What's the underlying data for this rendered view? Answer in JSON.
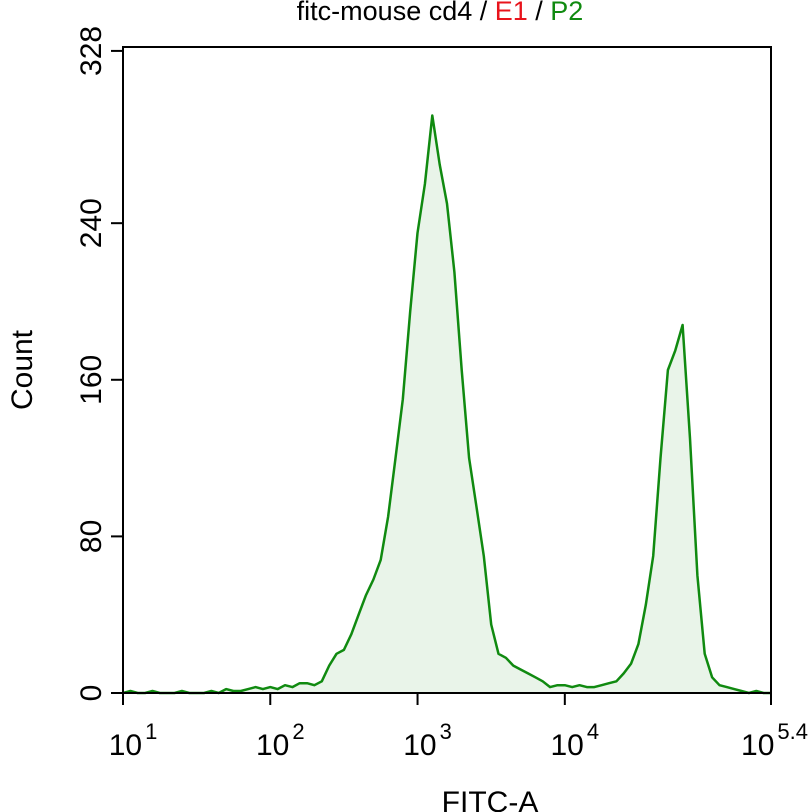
{
  "chart_data": {
    "type": "line",
    "title_parts": [
      {
        "text": "fitc-mouse cd4 / ",
        "color": "#000000"
      },
      {
        "text": "E1",
        "color": "#e8141c"
      },
      {
        "text": " / ",
        "color": "#000000"
      },
      {
        "text": "P2",
        "color": "#108a10"
      }
    ],
    "x_label": "FITC-A",
    "y_label": "Count",
    "x_log": true,
    "xlim": [
      10,
      251189
    ],
    "xticks": [
      {
        "value": 10,
        "label": "10",
        "exponent": "1"
      },
      {
        "value": 100,
        "label": "10",
        "exponent": "2"
      },
      {
        "value": 1000,
        "label": "10",
        "exponent": "3"
      },
      {
        "value": 10000,
        "label": "10",
        "exponent": "4"
      },
      {
        "value": 251189,
        "label": "10",
        "exponent": "5.4"
      }
    ],
    "ylim": [
      0,
      330
    ],
    "yticks": [
      0,
      80,
      160,
      240,
      328
    ],
    "fill_color": "#e9f4e9",
    "x": [
      10,
      11.22,
      12.59,
      14.13,
      15.85,
      17.78,
      19.95,
      22.39,
      25.12,
      28.18,
      31.62,
      35.48,
      39.81,
      44.67,
      50.12,
      56.23,
      63.1,
      70.79,
      79.43,
      89.13,
      100,
      112.2,
      125.9,
      141.3,
      158.5,
      177.8,
      199.5,
      223.9,
      251.2,
      281.8,
      316.2,
      354.8,
      398.1,
      446.7,
      501.2,
      562.3,
      631,
      707.9,
      794.3,
      891.3,
      1000,
      1122,
      1259,
      1413,
      1585,
      1778,
      1995,
      2239,
      2512,
      2818,
      3162,
      3548,
      3981,
      4467,
      5012,
      5623,
      6310,
      7079,
      7943,
      8913,
      10000,
      11220,
      12590,
      14130,
      15850,
      17780,
      19950,
      22390,
      25120,
      28180,
      31620,
      35480,
      39810,
      44670,
      50120,
      56230,
      63100,
      70790,
      79430,
      89130,
      100000,
      112200,
      125900,
      141300,
      158500,
      177800,
      199500,
      223900,
      251189
    ],
    "series": [
      {
        "name": "P2",
        "color": "#108a10",
        "values": [
          0,
          1,
          0,
          0,
          1,
          0,
          0,
          0,
          1,
          0,
          0,
          0,
          1,
          0,
          2,
          1,
          1,
          2,
          3,
          2,
          3,
          2,
          4,
          3,
          5,
          5,
          4,
          6,
          14,
          20,
          22,
          30,
          40,
          50,
          58,
          68,
          90,
          120,
          150,
          195,
          235,
          260,
          295,
          270,
          250,
          215,
          165,
          120,
          95,
          70,
          35,
          20,
          18,
          14,
          12,
          10,
          8,
          6,
          3,
          4,
          4,
          3,
          4,
          3,
          3,
          4,
          5,
          6,
          10,
          15,
          25,
          45,
          70,
          120,
          165,
          175,
          188,
          130,
          60,
          20,
          8,
          4,
          3,
          2,
          1,
          0,
          1,
          0,
          0
        ]
      }
    ]
  }
}
